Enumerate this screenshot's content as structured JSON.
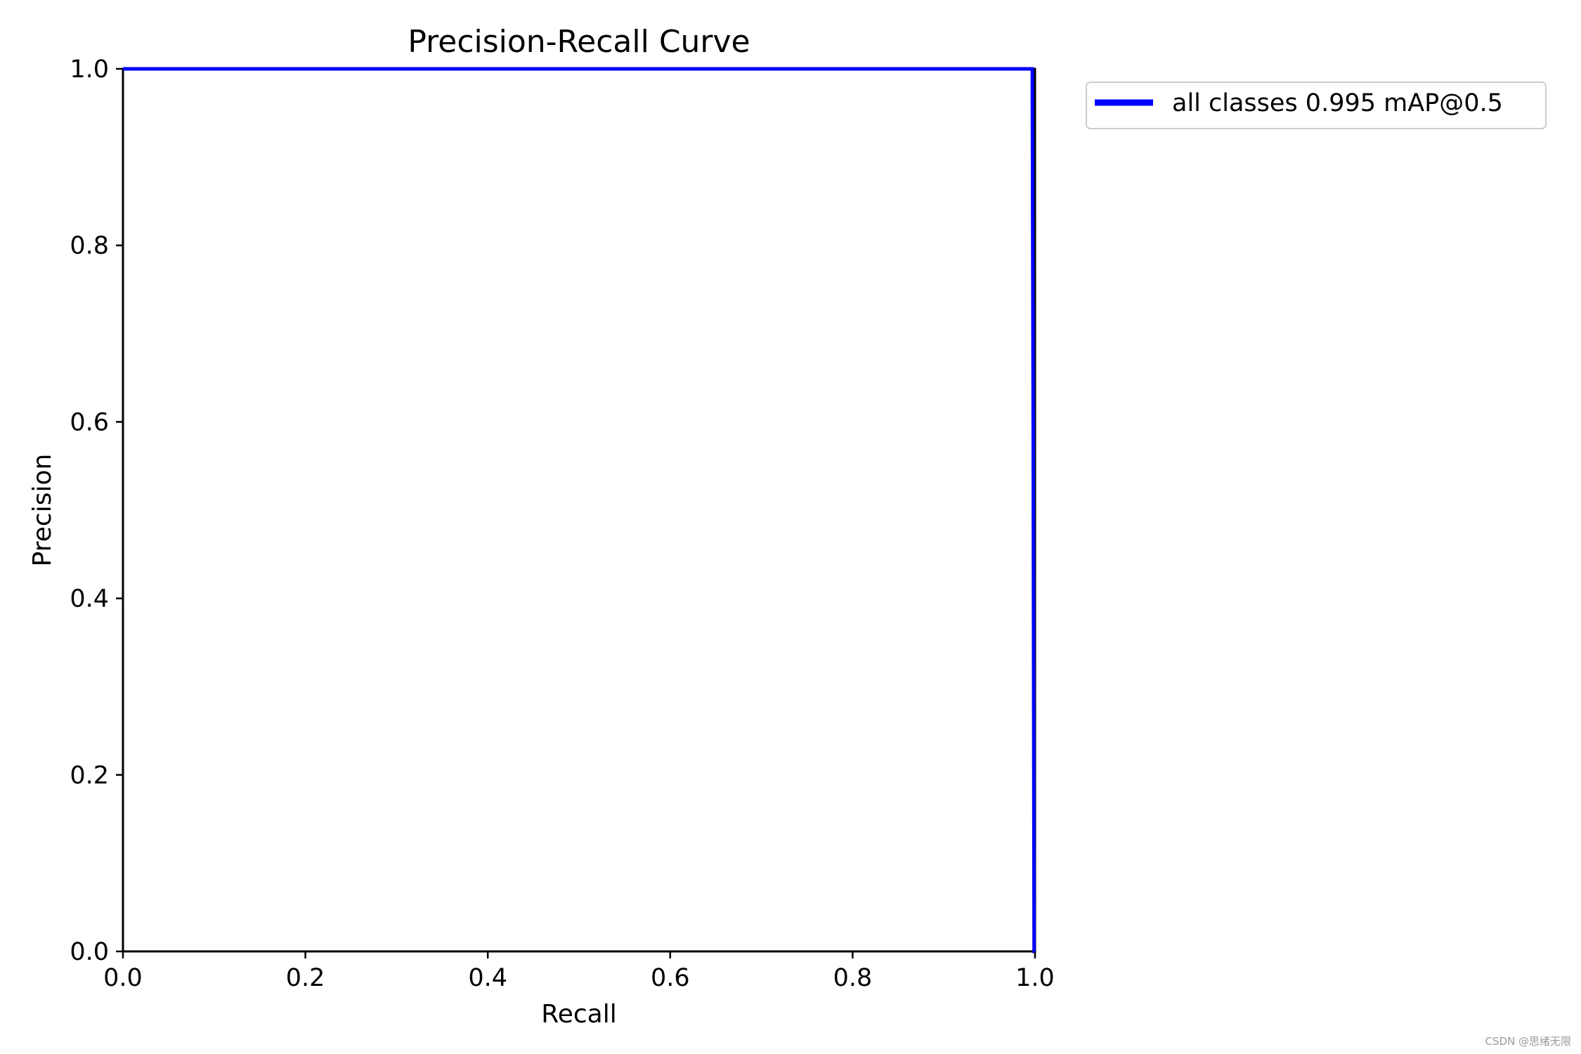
{
  "chart_data": {
    "type": "line",
    "title": "Precision-Recall Curve",
    "xlabel": "Recall",
    "ylabel": "Precision",
    "xlim": [
      0,
      1
    ],
    "ylim": [
      0,
      1
    ],
    "x_ticks": [
      0.0,
      0.2,
      0.4,
      0.6,
      0.8,
      1.0
    ],
    "x_tick_labels": [
      "0.0",
      "0.2",
      "0.4",
      "0.6",
      "0.8",
      "1.0"
    ],
    "y_ticks": [
      0.0,
      0.2,
      0.4,
      0.6,
      0.8,
      1.0
    ],
    "y_tick_labels": [
      "0.0",
      "0.2",
      "0.4",
      "0.6",
      "0.8",
      "1.0"
    ],
    "grid": false,
    "legend_position": "outside-top-right",
    "series": [
      {
        "name": "all classes 0.995 mAP@0.5",
        "color": "#0000ff",
        "x": [
          0.0,
          0.997,
          0.998,
          0.999,
          1.0
        ],
        "y": [
          1.0,
          1.0,
          0.6,
          0.0,
          0.0
        ]
      }
    ]
  },
  "watermark": "CSDN @思绪无限"
}
